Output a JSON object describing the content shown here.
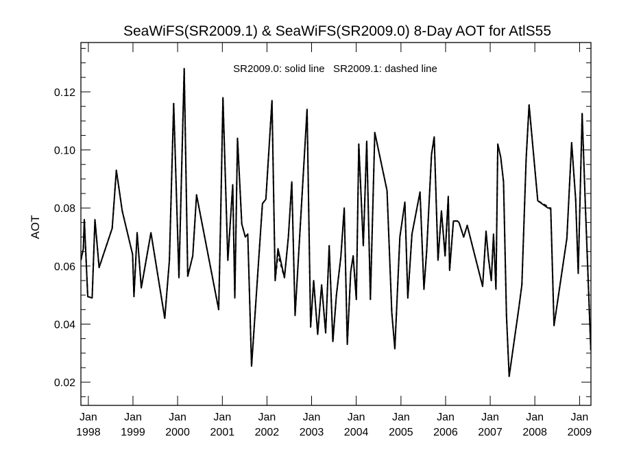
{
  "chart_data": {
    "type": "line",
    "title": "SeaWiFS(SR2009.1) & SeaWiFS(SR2009.0) 8-Day AOT for AtlS55",
    "ylabel": "AOT",
    "xlabel": "",
    "annotation": "SR2009.0: solid line   SR2009.1: dashed line",
    "ylim": [
      0.012,
      0.137
    ],
    "xlim": [
      "1997-11-01",
      "2009-04-04"
    ],
    "y_ticks": [
      {
        "value": 0.02,
        "label": "0.02"
      },
      {
        "value": 0.04,
        "label": "0.04"
      },
      {
        "value": 0.06,
        "label": "0.06"
      },
      {
        "value": 0.08,
        "label": "0.08"
      },
      {
        "value": 0.1,
        "label": "0.10"
      },
      {
        "value": 0.12,
        "label": "0.12"
      }
    ],
    "x_ticks": [
      {
        "date": "1998-01-01",
        "month": "Jan",
        "year": "1998"
      },
      {
        "date": "1999-01-01",
        "month": "Jan",
        "year": "1999"
      },
      {
        "date": "2000-01-01",
        "month": "Jan",
        "year": "2000"
      },
      {
        "date": "2001-01-01",
        "month": "Jan",
        "year": "2001"
      },
      {
        "date": "2002-01-01",
        "month": "Jan",
        "year": "2002"
      },
      {
        "date": "2003-01-01",
        "month": "Jan",
        "year": "2003"
      },
      {
        "date": "2004-01-01",
        "month": "Jan",
        "year": "2004"
      },
      {
        "date": "2005-01-01",
        "month": "Jan",
        "year": "2005"
      },
      {
        "date": "2006-01-01",
        "month": "Jan",
        "year": "2006"
      },
      {
        "date": "2007-01-01",
        "month": "Jan",
        "year": "2007"
      },
      {
        "date": "2008-01-01",
        "month": "Jan",
        "year": "2008"
      },
      {
        "date": "2009-01-01",
        "month": "Jan",
        "year": "2009"
      }
    ],
    "series": [
      {
        "name": "SR2009.0",
        "style": "solid",
        "color": "#000000",
        "points": [
          [
            "1997-11-01",
            0.062
          ],
          [
            "1997-11-21",
            0.066
          ],
          [
            "1997-11-29",
            0.076
          ],
          [
            "1997-12-27",
            0.0495
          ],
          [
            "1998-02-01",
            0.049
          ],
          [
            "1998-02-24",
            0.076
          ],
          [
            "1998-03-30",
            0.0595
          ],
          [
            "1998-07-15",
            0.073
          ],
          [
            "1998-08-18",
            0.093
          ],
          [
            "1998-10-05",
            0.079
          ],
          [
            "1998-12-29",
            0.064
          ],
          [
            "1999-01-09",
            0.0495
          ],
          [
            "1999-02-04",
            0.0715
          ],
          [
            "1999-03-10",
            0.0525
          ],
          [
            "1999-05-28",
            0.0715
          ],
          [
            "1999-09-18",
            0.042
          ],
          [
            "1999-10-26",
            0.062
          ],
          [
            "1999-11-30",
            0.116
          ],
          [
            "2000-01-12",
            0.056
          ],
          [
            "2000-02-24",
            0.128
          ],
          [
            "2000-03-24",
            0.0565
          ],
          [
            "2000-05-04",
            0.0635
          ],
          [
            "2000-06-04",
            0.0845
          ],
          [
            "2000-12-02",
            0.045
          ],
          [
            "2000-12-16",
            0.072
          ],
          [
            "2001-01-06",
            0.118
          ],
          [
            "2001-02-15",
            0.062
          ],
          [
            "2001-03-27",
            0.088
          ],
          [
            "2001-04-13",
            0.049
          ],
          [
            "2001-05-05",
            0.104
          ],
          [
            "2001-06-09",
            0.0745
          ],
          [
            "2001-07-08",
            0.07
          ],
          [
            "2001-07-28",
            0.071
          ],
          [
            "2001-08-28",
            0.0255
          ],
          [
            "2001-11-25",
            0.0815
          ],
          [
            "2001-12-23",
            0.083
          ],
          [
            "2002-02-11",
            0.117
          ],
          [
            "2002-03-09",
            0.055
          ],
          [
            "2002-04-01",
            0.066
          ],
          [
            "2002-05-24",
            0.056
          ],
          [
            "2002-06-25",
            0.07
          ],
          [
            "2002-07-23",
            0.089
          ],
          [
            "2002-08-19",
            0.043
          ],
          [
            "2002-09-28",
            0.072
          ],
          [
            "2002-11-25",
            0.114
          ],
          [
            "2002-12-24",
            0.039
          ],
          [
            "2003-01-18",
            0.055
          ],
          [
            "2003-02-20",
            0.0365
          ],
          [
            "2003-03-24",
            0.0535
          ],
          [
            "2003-04-26",
            0.037
          ],
          [
            "2003-05-25",
            0.067
          ],
          [
            "2003-06-24",
            0.034
          ],
          [
            "2003-07-23",
            0.05
          ],
          [
            "2003-08-28",
            0.063
          ],
          [
            "2003-09-25",
            0.08
          ],
          [
            "2003-10-20",
            0.033
          ],
          [
            "2003-11-17",
            0.058
          ],
          [
            "2003-12-07",
            0.0635
          ],
          [
            "2004-01-02",
            0.0485
          ],
          [
            "2004-01-22",
            0.102
          ],
          [
            "2004-02-28",
            0.067
          ],
          [
            "2004-03-27",
            0.103
          ],
          [
            "2004-04-26",
            0.0485
          ],
          [
            "2004-06-01",
            0.106
          ],
          [
            "2004-09-09",
            0.086
          ],
          [
            "2004-10-18",
            0.044
          ],
          [
            "2004-11-12",
            0.0315
          ],
          [
            "2004-12-23",
            0.07
          ],
          [
            "2005-02-02",
            0.082
          ],
          [
            "2005-02-26",
            0.049
          ],
          [
            "2005-04-01",
            0.071
          ],
          [
            "2005-05-12",
            0.08
          ],
          [
            "2005-06-06",
            0.0855
          ],
          [
            "2005-07-08",
            0.052
          ],
          [
            "2005-07-30",
            0.065
          ],
          [
            "2005-09-08",
            0.0985
          ],
          [
            "2005-09-30",
            0.1045
          ],
          [
            "2005-10-31",
            0.062
          ],
          [
            "2005-11-28",
            0.079
          ],
          [
            "2005-12-28",
            0.0635
          ],
          [
            "2006-01-23",
            0.084
          ],
          [
            "2006-02-03",
            0.0585
          ],
          [
            "2006-03-06",
            0.0755
          ],
          [
            "2006-04-08",
            0.0755
          ],
          [
            "2006-04-21",
            0.075
          ],
          [
            "2006-05-29",
            0.07
          ],
          [
            "2006-06-27",
            0.074
          ],
          [
            "2006-10-31",
            0.053
          ],
          [
            "2006-11-28",
            0.072
          ],
          [
            "2006-12-17",
            0.063
          ],
          [
            "2007-01-10",
            0.055
          ],
          [
            "2007-01-28",
            0.071
          ],
          [
            "2007-02-17",
            0.052
          ],
          [
            "2007-03-04",
            0.102
          ],
          [
            "2007-03-28",
            0.0975
          ],
          [
            "2007-04-20",
            0.089
          ],
          [
            "2007-05-14",
            0.043
          ],
          [
            "2007-06-05",
            0.022
          ],
          [
            "2007-08-23",
            0.0455
          ],
          [
            "2007-09-17",
            0.0535
          ],
          [
            "2007-10-22",
            0.097
          ],
          [
            "2007-11-15",
            0.1155
          ],
          [
            "2007-12-29",
            0.095
          ],
          [
            "2008-01-25",
            0.0825
          ],
          [
            "2008-04-17",
            0.08
          ],
          [
            "2008-05-10",
            0.08
          ],
          [
            "2008-06-06",
            0.0395
          ],
          [
            "2008-09-19",
            0.0695
          ],
          [
            "2008-10-28",
            0.1025
          ],
          [
            "2008-11-30",
            0.083
          ],
          [
            "2008-12-21",
            0.0575
          ],
          [
            "2009-01-22",
            0.1125
          ],
          [
            "2009-02-18",
            0.08
          ],
          [
            "2009-04-03",
            0.031
          ]
        ]
      },
      {
        "name": "SR2009.1",
        "style": "dashed",
        "color": "#000000",
        "points": [
          [
            "1997-11-01",
            0.062
          ],
          [
            "1997-11-21",
            0.066
          ],
          [
            "1997-11-29",
            0.076
          ],
          [
            "1997-12-27",
            0.0495
          ],
          [
            "1998-02-01",
            0.049
          ],
          [
            "1998-02-24",
            0.076
          ],
          [
            "1998-03-30",
            0.0595
          ],
          [
            "1998-07-15",
            0.073
          ],
          [
            "1998-08-18",
            0.093
          ],
          [
            "1998-10-05",
            0.079
          ],
          [
            "1998-12-29",
            0.064
          ],
          [
            "1999-01-09",
            0.0495
          ],
          [
            "1999-02-04",
            0.0715
          ],
          [
            "1999-03-10",
            0.0525
          ],
          [
            "1999-05-28",
            0.0715
          ],
          [
            "1999-09-18",
            0.042
          ],
          [
            "1999-10-26",
            0.062
          ],
          [
            "1999-11-30",
            0.116
          ],
          [
            "2000-01-12",
            0.056
          ],
          [
            "2000-02-24",
            0.128
          ],
          [
            "2000-03-24",
            0.0565
          ],
          [
            "2000-05-04",
            0.0635
          ],
          [
            "2000-06-04",
            0.0845
          ],
          [
            "2000-12-02",
            0.045
          ],
          [
            "2000-12-16",
            0.072
          ],
          [
            "2001-01-06",
            0.118
          ],
          [
            "2001-02-15",
            0.062
          ],
          [
            "2001-03-27",
            0.088
          ],
          [
            "2001-04-13",
            0.049
          ],
          [
            "2001-05-05",
            0.104
          ],
          [
            "2001-06-09",
            0.0745
          ],
          [
            "2001-07-08",
            0.07
          ],
          [
            "2001-07-28",
            0.071
          ],
          [
            "2001-08-28",
            0.0255
          ],
          [
            "2001-11-25",
            0.0815
          ],
          [
            "2001-12-23",
            0.083
          ],
          [
            "2002-02-11",
            0.117
          ],
          [
            "2002-03-09",
            0.055
          ],
          [
            "2002-04-01",
            0.064
          ],
          [
            "2002-05-24",
            0.056
          ],
          [
            "2002-06-25",
            0.07
          ],
          [
            "2002-07-23",
            0.089
          ],
          [
            "2002-08-19",
            0.043
          ],
          [
            "2002-09-28",
            0.072
          ],
          [
            "2002-11-25",
            0.114
          ],
          [
            "2002-12-24",
            0.039
          ],
          [
            "2003-01-18",
            0.055
          ],
          [
            "2003-02-20",
            0.0365
          ],
          [
            "2003-03-24",
            0.0535
          ],
          [
            "2003-04-26",
            0.037
          ],
          [
            "2003-05-25",
            0.067
          ],
          [
            "2003-06-24",
            0.034
          ],
          [
            "2003-07-23",
            0.05
          ],
          [
            "2003-08-28",
            0.063
          ],
          [
            "2003-09-25",
            0.08
          ],
          [
            "2003-10-20",
            0.033
          ],
          [
            "2003-11-17",
            0.058
          ],
          [
            "2003-12-07",
            0.0635
          ],
          [
            "2004-01-02",
            0.0485
          ],
          [
            "2004-01-22",
            0.102
          ],
          [
            "2004-02-28",
            0.067
          ],
          [
            "2004-03-27",
            0.103
          ],
          [
            "2004-04-26",
            0.0485
          ],
          [
            "2004-06-01",
            0.106
          ],
          [
            "2004-09-09",
            0.086
          ],
          [
            "2004-10-18",
            0.044
          ],
          [
            "2004-11-12",
            0.0315
          ],
          [
            "2004-12-23",
            0.07
          ],
          [
            "2005-02-02",
            0.082
          ],
          [
            "2005-02-26",
            0.049
          ],
          [
            "2005-04-01",
            0.071
          ],
          [
            "2005-05-12",
            0.08
          ],
          [
            "2005-06-06",
            0.0855
          ],
          [
            "2005-07-08",
            0.052
          ],
          [
            "2005-07-30",
            0.065
          ],
          [
            "2005-09-08",
            0.0985
          ],
          [
            "2005-09-30",
            0.1045
          ],
          [
            "2005-10-31",
            0.062
          ],
          [
            "2005-11-28",
            0.079
          ],
          [
            "2005-12-28",
            0.0635
          ],
          [
            "2006-01-23",
            0.084
          ],
          [
            "2006-02-03",
            0.0585
          ],
          [
            "2006-03-06",
            0.0755
          ],
          [
            "2006-04-08",
            0.0755
          ],
          [
            "2006-04-21",
            0.075
          ],
          [
            "2006-05-29",
            0.07
          ],
          [
            "2006-06-27",
            0.074
          ],
          [
            "2006-10-31",
            0.053
          ],
          [
            "2006-11-28",
            0.072
          ],
          [
            "2006-12-17",
            0.063
          ],
          [
            "2007-01-10",
            0.055
          ],
          [
            "2007-01-28",
            0.071
          ],
          [
            "2007-02-17",
            0.052
          ],
          [
            "2007-03-04",
            0.102
          ],
          [
            "2007-03-28",
            0.0975
          ],
          [
            "2007-04-20",
            0.089
          ],
          [
            "2007-05-14",
            0.043
          ],
          [
            "2007-06-05",
            0.022
          ],
          [
            "2007-08-23",
            0.0455
          ],
          [
            "2007-09-17",
            0.0535
          ],
          [
            "2007-10-22",
            0.097
          ],
          [
            "2007-11-15",
            0.1155
          ],
          [
            "2007-12-29",
            0.095
          ],
          [
            "2008-01-25",
            0.0825
          ],
          [
            "2008-04-17",
            0.0805
          ],
          [
            "2008-05-10",
            0.0795
          ],
          [
            "2008-06-06",
            0.0395
          ],
          [
            "2008-09-19",
            0.0695
          ],
          [
            "2008-10-28",
            0.1025
          ],
          [
            "2008-11-30",
            0.083
          ],
          [
            "2008-12-21",
            0.0575
          ],
          [
            "2009-01-22",
            0.1125
          ],
          [
            "2009-02-18",
            0.08
          ],
          [
            "2009-04-03",
            0.031
          ]
        ]
      }
    ]
  }
}
